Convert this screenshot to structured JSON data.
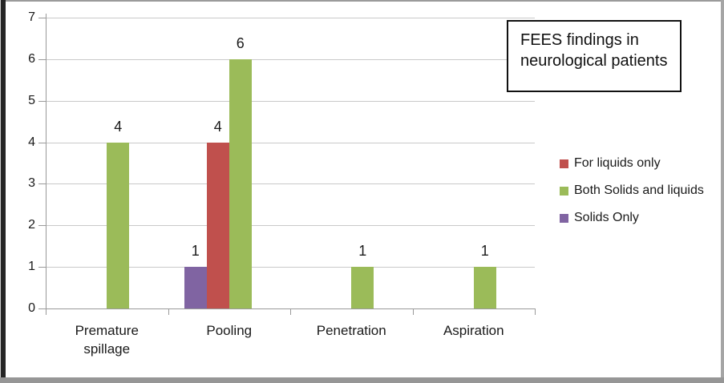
{
  "figure": {
    "title_lines": [
      "FEES findings in",
      "neurological patients"
    ]
  },
  "chart_data": {
    "type": "bar",
    "title": "FEES findings in neurological patients",
    "categories": [
      "Premature spillage",
      "Pooling",
      "Penetration",
      "Aspiration"
    ],
    "series": [
      {
        "name": "For liquids only",
        "color": "#C0504D",
        "slot": 1,
        "values": [
          0,
          4,
          0,
          0
        ]
      },
      {
        "name": "Both Solids and liquids",
        "color": "#9BBB59",
        "slot": 2,
        "values": [
          4,
          6,
          1,
          1
        ]
      },
      {
        "name": "Solids Only",
        "color": "#8064A2",
        "slot": 0,
        "values": [
          0,
          1,
          0,
          0
        ]
      }
    ],
    "ylim": [
      0,
      7
    ],
    "yticks": [
      0,
      1,
      2,
      3,
      4,
      5,
      6,
      7
    ],
    "grid": true,
    "data_labels": true,
    "legend_position": "right",
    "colors": {
      "grid": "#C9C9C9",
      "axis": "#9A9A9A",
      "text": "#1A1A1A"
    }
  }
}
